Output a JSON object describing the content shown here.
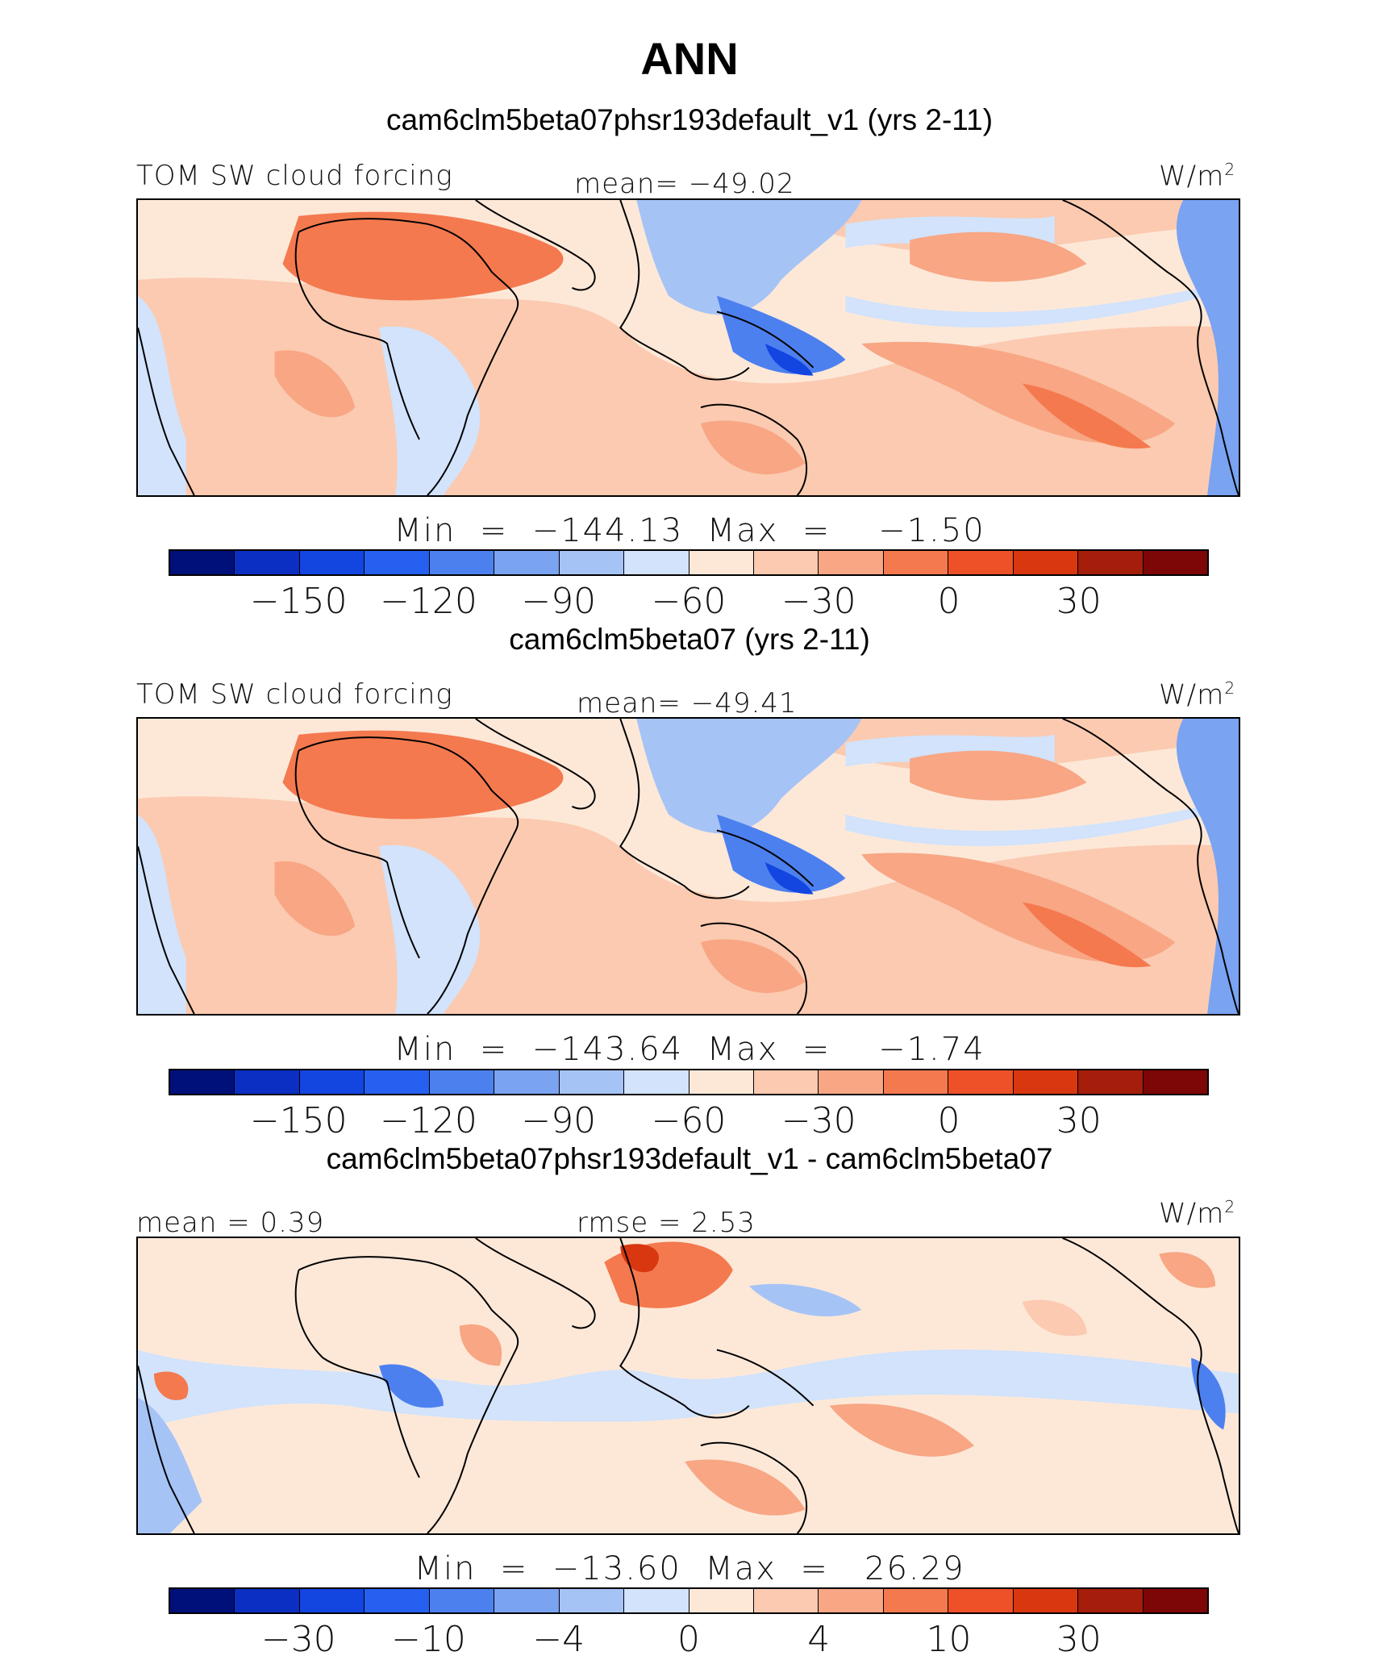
{
  "title": "ANN",
  "panels": [
    {
      "case_title": "cam6clm5beta07phsr193default_v1 (yrs 2-11)",
      "left_label": "TOM SW cloud forcing",
      "center_label": "mean= −49.02",
      "units": "W/m",
      "units_exp": "2",
      "minmax": "Min  =  −144.13  Max  =    −1.50",
      "ticks": [
        "−150",
        "−120",
        "−90",
        "−60",
        "−30",
        "0",
        "30"
      ],
      "palette": [
        "#00107a",
        "#0a2fc2",
        "#1345e0",
        "#2660f0",
        "#4c80ef",
        "#7aa3f1",
        "#a6c3f6",
        "#d2e3fb",
        "#fde8d8",
        "#fbcab0",
        "#f8a684",
        "#f4794f",
        "#ee5028",
        "#d93710",
        "#a51d0b",
        "#7d0606"
      ]
    },
    {
      "case_title": "cam6clm5beta07 (yrs 2-11)",
      "left_label": "TOM SW cloud forcing",
      "center_label": "mean= −49.41",
      "units": "W/m",
      "units_exp": "2",
      "minmax": "Min  =  −143.64  Max  =    −1.74",
      "ticks": [
        "−150",
        "−120",
        "−90",
        "−60",
        "−30",
        "0",
        "30"
      ],
      "palette": [
        "#00107a",
        "#0a2fc2",
        "#1345e0",
        "#2660f0",
        "#4c80ef",
        "#7aa3f1",
        "#a6c3f6",
        "#d2e3fb",
        "#fde8d8",
        "#fbcab0",
        "#f8a684",
        "#f4794f",
        "#ee5028",
        "#d93710",
        "#a51d0b",
        "#7d0606"
      ]
    },
    {
      "case_title": "cam6clm5beta07phsr193default_v1 - cam6clm5beta07",
      "left_label": "mean =    0.39",
      "center_label": "rmse =    2.53",
      "units": "W/m",
      "units_exp": "2",
      "minmax": "Min  =  −13.60  Max  =   26.29",
      "ticks": [
        "−30",
        "−10",
        "−4",
        "0",
        "4",
        "10",
        "30"
      ],
      "palette": [
        "#00107a",
        "#0a2fc2",
        "#1345e0",
        "#2660f0",
        "#4c80ef",
        "#7aa3f1",
        "#a6c3f6",
        "#d2e3fb",
        "#fde8d8",
        "#fbcab0",
        "#f8a684",
        "#f4794f",
        "#ee5028",
        "#d93710",
        "#a51d0b",
        "#7d0606"
      ]
    }
  ]
}
